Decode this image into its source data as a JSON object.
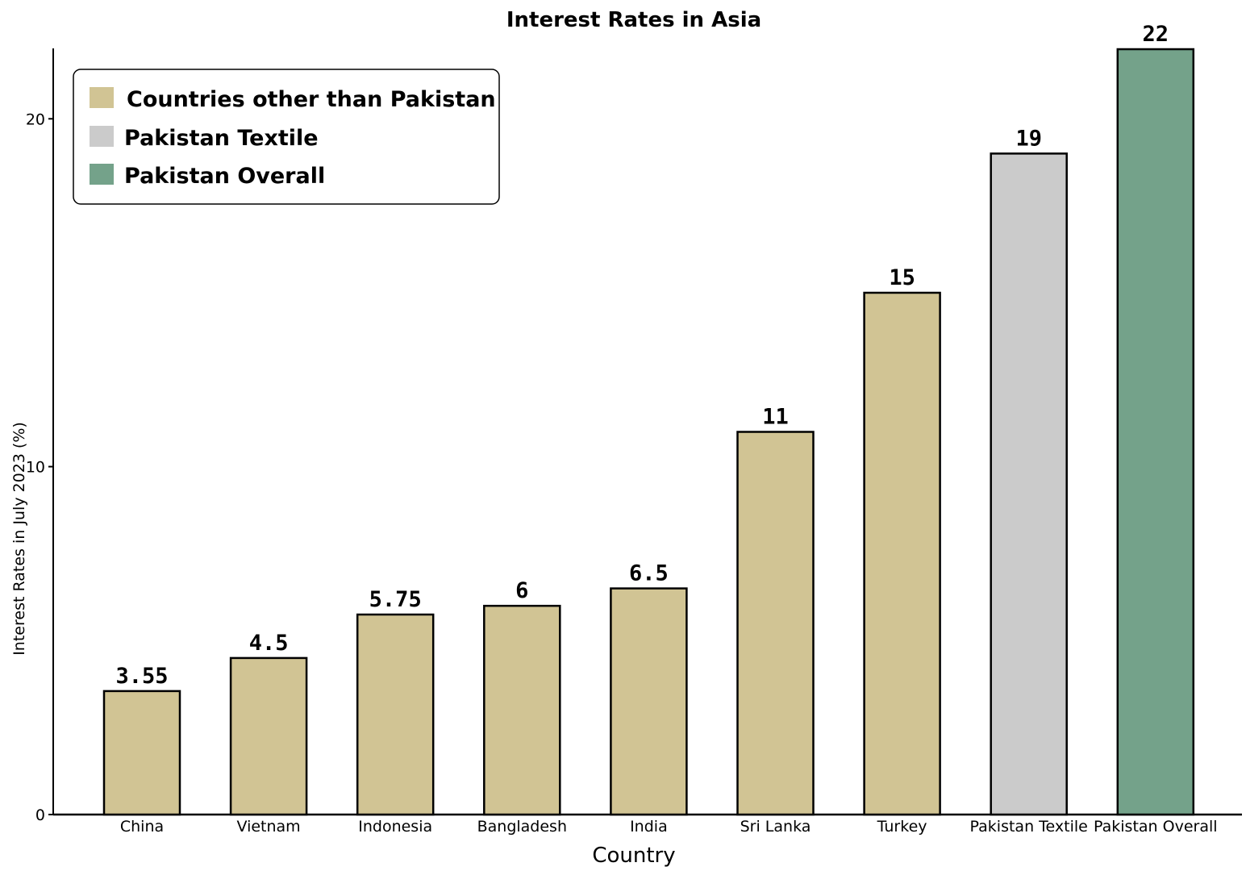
{
  "chart_data": {
    "type": "bar",
    "title": "Interest Rates in Asia",
    "xlabel": "Country",
    "ylabel": "Interest Rates in July 2023 (%)",
    "ylim": [
      0,
      22
    ],
    "yticks": [
      0,
      10,
      20
    ],
    "categories": [
      "China",
      "Vietnam",
      "Indonesia",
      "Bangladesh",
      "India",
      "Sri Lanka",
      "Turkey",
      "Pakistan Textile",
      "Pakistan Overall"
    ],
    "values": [
      3.55,
      4.5,
      5.75,
      6,
      6.5,
      11,
      15,
      19,
      22
    ],
    "value_labels": [
      "3.55",
      "4.5",
      "5.75",
      "6",
      "6.5",
      "11",
      "15",
      "19",
      "22"
    ],
    "groups": [
      "other",
      "other",
      "other",
      "other",
      "other",
      "other",
      "other",
      "textile",
      "overall"
    ],
    "legend": {
      "position": "top-left",
      "entries": [
        {
          "key": "other",
          "label": "Countries other than Pakistan",
          "color": "#d1c494"
        },
        {
          "key": "textile",
          "label": "Pakistan Textile",
          "color": "#cbcbcb"
        },
        {
          "key": "overall",
          "label": "Pakistan Overall",
          "color": "#74a28a"
        }
      ]
    },
    "grid": false
  }
}
